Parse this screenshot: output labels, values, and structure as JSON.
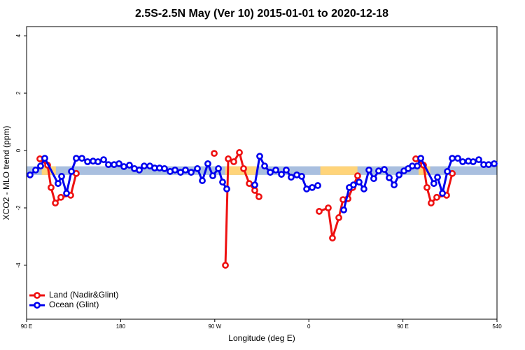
{
  "chart_data": {
    "type": "line",
    "title": "2.5S-2.5N May (Ver 10)   2015-01-01 to 2020-12-18",
    "x_label": "Longitude (deg E)",
    "y_label": "XCO2 - MLO trend (ppm)",
    "xlim": [
      90,
      540
    ],
    "xticks": [
      {
        "value": 90,
        "label": "90 E"
      },
      180,
      {
        "value": 270,
        "label": "90 W"
      },
      {
        "value": 360,
        "label": "0"
      },
      {
        "value": 450,
        "label": "90 E"
      },
      540
    ],
    "ylim": [
      -5.88,
      4.32
    ],
    "yticks": [
      -4,
      -2,
      0,
      2,
      4
    ],
    "legend": "bottom-left",
    "reference_band": {
      "ylim": [
        -0.85,
        -0.55
      ],
      "color": "#a9bfdf",
      "highlight_color": "#ffd47a",
      "highlight_x": [
        [
          104.5,
          118
        ],
        [
          280,
          310
        ],
        [
          371,
          406.5
        ],
        [
          465,
          476
        ]
      ]
    },
    "series": [
      {
        "name": "Land (Nadir&Glint)",
        "color": "#ee1111",
        "x": [
          102.7,
          110.1,
          113.4,
          117.5,
          122.8,
          132.2,
          137.5,
          null,
          269.5,
          null,
          280.2,
          282.9,
          288.2,
          293.6,
          297.6,
          303,
          308.3,
          312.3,
          null,
          369.9,
          378.6,
          382.6,
          388.7,
          392.7,
          397.4,
          402,
          406.7,
          null,
          462.3,
          469.7,
          473,
          477,
          482.4,
          491.8,
          497.2
        ],
        "values": [
          -0.29,
          -0.51,
          -1.29,
          -1.83,
          -1.63,
          -1.56,
          -0.8,
          null,
          -0.1,
          null,
          -4.0,
          -0.29,
          -0.39,
          -0.07,
          -0.63,
          -1.15,
          -1.39,
          -1.61,
          null,
          -2.12,
          -2.0,
          -3.05,
          -2.34,
          -1.71,
          -1.68,
          -1.29,
          -0.88,
          null,
          -0.29,
          -0.51,
          -1.29,
          -1.83,
          -1.63,
          -1.56,
          -0.8
        ]
      },
      {
        "name": "Ocean (Glint)",
        "color": "#0000ee",
        "x": [
          93.3,
          98.7,
          103.4,
          107.4,
          120.1,
          123.5,
          128.2,
          132.9,
          137.5,
          142.9,
          148.3,
          153.6,
          158.3,
          163.7,
          168.3,
          173.7,
          178.4,
          183.1,
          188.4,
          193.1,
          197.8,
          202.5,
          207.9,
          212.5,
          217.2,
          221.9,
          227.3,
          232,
          237.3,
          242,
          247.4,
          253.4,
          258.1,
          263.4,
          268.1,
          273.5,
          277.5,
          281.5,
          null,
          308.3,
          313,
          317.7,
          323.1,
          328.4,
          333.8,
          338.4,
          343.1,
          348.5,
          353.2,
          357.9,
          363.2,
          368.6,
          null,
          393.4,
          398.7,
          402.7,
          408.1,
          412.7,
          417.5,
          422.1,
          426.8,
          432.2,
          436.9,
          441.6,
          446.3,
          451,
          455,
          459,
          463.7,
          467.1,
          479.6,
          483.1,
          487.8,
          492.5,
          497.2,
          502.5,
          507.2,
          512.6,
          517.2,
          522.6,
          527.3,
          532,
          537.3
        ],
        "values": [
          -0.85,
          -0.68,
          -0.54,
          -0.27,
          -1.15,
          -0.9,
          -1.49,
          -0.73,
          -0.27,
          -0.27,
          -0.39,
          -0.37,
          -0.39,
          -0.32,
          -0.49,
          -0.49,
          -0.46,
          -0.56,
          -0.51,
          -0.63,
          -0.68,
          -0.54,
          -0.54,
          -0.61,
          -0.61,
          -0.63,
          -0.73,
          -0.68,
          -0.76,
          -0.68,
          -0.76,
          -0.63,
          -1.05,
          -0.46,
          -0.88,
          -0.63,
          -1.1,
          -1.34,
          null,
          -1.2,
          -0.2,
          -0.54,
          -0.76,
          -0.68,
          -0.83,
          -0.68,
          -0.93,
          -0.85,
          -0.9,
          -1.34,
          -1.29,
          -1.22,
          null,
          -2.07,
          -1.29,
          -1.2,
          -1.1,
          -1.34,
          -0.68,
          -0.98,
          -0.71,
          -0.66,
          -0.95,
          -1.2,
          -0.85,
          -0.71,
          -0.63,
          -0.54,
          -0.54,
          -0.27,
          -1.15,
          -0.93,
          -1.49,
          -0.73,
          -0.27,
          -0.27,
          -0.39,
          -0.37,
          -0.39,
          -0.32,
          -0.49,
          -0.49,
          -0.46
        ]
      }
    ]
  }
}
